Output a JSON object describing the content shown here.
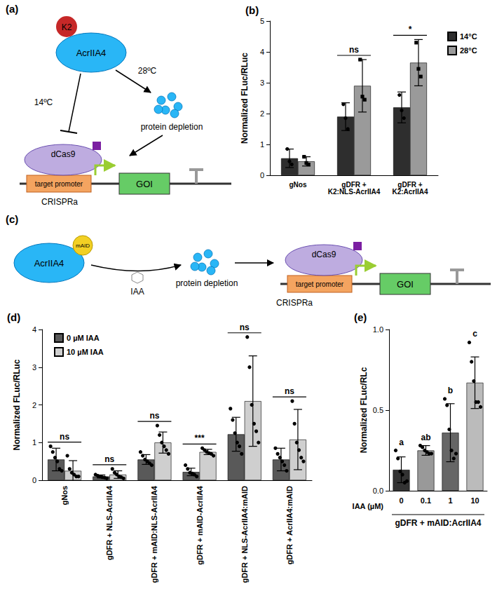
{
  "diagrams": [
    {
      "label": "(a)",
      "tag": "K2",
      "protein": "AcrIIA4",
      "cold": "14ºC",
      "warm": "28ºC",
      "depletion": "protein depletion",
      "cas": "dCas9",
      "promoter": "target promoter",
      "gene": "GOI",
      "system": "CRISPRa"
    },
    {
      "label": "(c)",
      "tag": "mAID",
      "protein": "AcrIIA4",
      "inducer": "IAA",
      "depletion": "protein depletion",
      "cas": "dCas9",
      "promoter": "target promoter",
      "gene": "GOI",
      "system": "CRISPRa"
    }
  ],
  "chart_data": [
    {
      "type": "bar",
      "title": "(b)",
      "y_label": "Normalized FLuc/RLuc",
      "categories": [
        "gNos",
        "gDFR +\nK2:NLS-AcrIIA4",
        "gDFR +\nK2:AcrIIA4"
      ],
      "series": [
        {
          "name": "14°C",
          "color": "#2e2e2e",
          "marker": "circle",
          "values": [
            0.55,
            1.9,
            2.2
          ],
          "errors": [
            0.3,
            0.45,
            0.5
          ],
          "points": [
            [
              0.85,
              0.45,
              0.35
            ],
            [
              2.3,
              1.85,
              1.5
            ],
            [
              2.6,
              2.1,
              1.85
            ]
          ]
        },
        {
          "name": "28°C",
          "color": "#9a9a9a",
          "marker": "square",
          "values": [
            0.45,
            2.9,
            3.65
          ],
          "errors": [
            0.15,
            0.85,
            0.75
          ],
          "points": [
            [
              0.6,
              0.4,
              0.35
            ],
            [
              3.75,
              2.55,
              2.45
            ],
            [
              4.3,
              3.45,
              3.2
            ]
          ]
        }
      ],
      "annotations": [
        null,
        "ns",
        "*"
      ],
      "ylim": [
        0,
        5
      ],
      "yticks": [
        0,
        1,
        2,
        3,
        4,
        5
      ],
      "grid": false,
      "legend": "top-right"
    },
    {
      "type": "bar",
      "title": "(d)",
      "y_label": "Normalized FLuc/RLuc",
      "categories": [
        "gNos",
        "gDFR + NLS-AcrIIA4",
        "gDFR + mAID:NLS-AcrIIA4",
        "gDFR + mAID-AcrIIA4",
        "gDFR + NLS-AcrIIA4:mAID",
        "gDFR + AcrIIA4:mAID"
      ],
      "series": [
        {
          "name": "0 µM IAA",
          "color": "#595959",
          "marker": "circle",
          "values": [
            0.55,
            0.1,
            0.55,
            0.22,
            1.22,
            0.55
          ],
          "errors": [
            0.3,
            0.04,
            0.13,
            0.1,
            0.45,
            0.3
          ],
          "points": [
            [
              0.9,
              0.75,
              0.6,
              0.5,
              0.3,
              0.25
            ],
            [
              0.15,
              0.12,
              0.1,
              0.08,
              0.07,
              0.05
            ],
            [
              0.75,
              0.65,
              0.55,
              0.5,
              0.45,
              0.4
            ],
            [
              0.4,
              0.3,
              0.2,
              0.18,
              0.15,
              0.1
            ],
            [
              1.9,
              1.6,
              1.25,
              1.0,
              0.9,
              0.7
            ],
            [
              0.85,
              0.7,
              0.6,
              0.5,
              0.4,
              0.25
            ]
          ]
        },
        {
          "name": "10 µM IAA",
          "color": "#cfcfcf",
          "marker": "circle",
          "values": [
            0.25,
            0.15,
            1.0,
            0.75,
            2.1,
            1.08
          ],
          "errors": [
            0.27,
            0.1,
            0.28,
            0.07,
            1.2,
            0.8
          ],
          "points": [
            [
              0.65,
              0.3,
              0.2,
              0.15,
              0.1,
              0.1
            ],
            [
              0.3,
              0.2,
              0.15,
              0.1,
              0.08,
              0.05
            ],
            [
              1.45,
              1.2,
              1.0,
              0.9,
              0.8,
              0.7
            ],
            [
              0.85,
              0.8,
              0.75,
              0.72,
              0.7,
              0.65
            ],
            [
              3.8,
              3.0,
              2.0,
              1.5,
              1.3,
              1.0
            ],
            [
              2.1,
              1.5,
              1.0,
              0.8,
              0.6,
              0.5
            ]
          ]
        }
      ],
      "annotations": [
        "ns",
        "ns",
        "ns",
        "***",
        "ns",
        "ns"
      ],
      "ylim": [
        0,
        4
      ],
      "yticks": [
        0,
        1,
        2,
        3,
        4
      ],
      "grid": false,
      "legend": "top-left"
    },
    {
      "type": "bar",
      "title": "(e)",
      "y_label": "Normalized FLuc/RLc",
      "x_label": "IAA (µM)",
      "group_label": "gDFR + mAID:AcrIIA4",
      "categories": [
        "0",
        "0.1",
        "1",
        "10"
      ],
      "values": [
        0.13,
        0.25,
        0.36,
        0.67
      ],
      "errors": [
        0.08,
        0.03,
        0.18,
        0.16
      ],
      "points": [
        [
          0.25,
          0.2,
          0.12,
          0.1,
          0.05,
          0.06
        ],
        [
          0.28,
          0.27,
          0.25,
          0.24,
          0.23,
          0.23
        ],
        [
          0.57,
          0.53,
          0.38,
          0.25,
          0.2,
          0.23
        ],
        [
          0.92,
          0.8,
          0.68,
          0.55,
          0.55,
          0.52
        ]
      ],
      "colors": [
        "#333333",
        "#999999",
        "#666666",
        "#bbbbbb"
      ],
      "marker": "circle",
      "annotations": [
        "a",
        "ab",
        "b",
        "c"
      ],
      "ylim": [
        0,
        1
      ],
      "yticks": [
        {
          "value": 0,
          "label": "0.0"
        },
        0.5,
        {
          "value": 1,
          "label": "1.0"
        }
      ],
      "grid": false
    }
  ]
}
